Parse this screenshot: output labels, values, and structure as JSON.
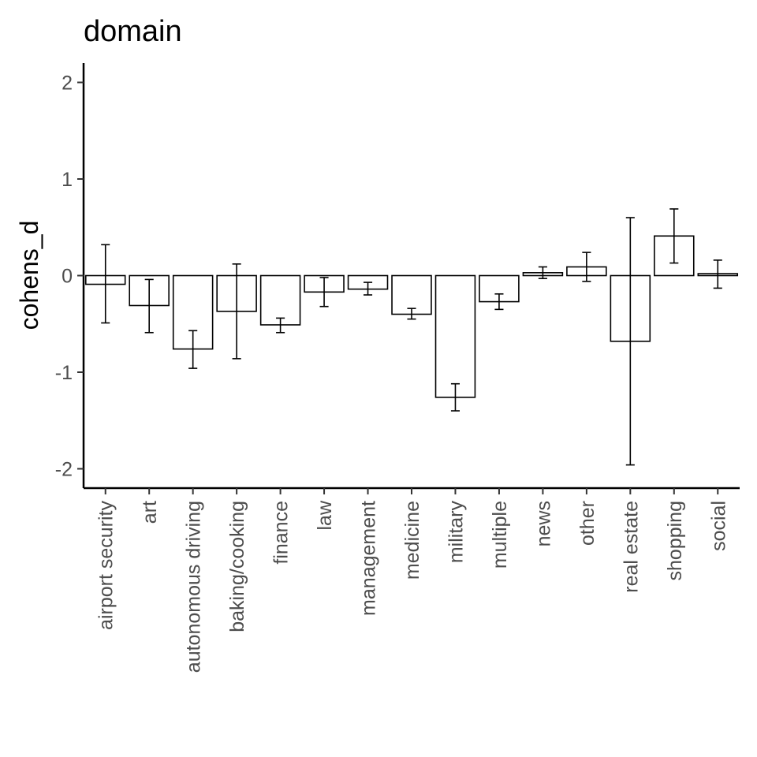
{
  "chart_data": {
    "type": "bar",
    "title": "domain",
    "xlabel": "",
    "ylabel": "cohens_d",
    "ylim": [
      -2.2,
      2.2
    ],
    "yticks": [
      -2,
      -1,
      0,
      1,
      2
    ],
    "grid": false,
    "categories": [
      "airport security",
      "art",
      "autonomous driving",
      "baking/cooking",
      "finance",
      "law",
      "management",
      "medicine",
      "military",
      "multiple",
      "news",
      "other",
      "real estate",
      "shopping",
      "social"
    ],
    "values": [
      -0.09,
      -0.31,
      -0.76,
      -0.37,
      -0.51,
      -0.17,
      -0.14,
      -0.4,
      -1.26,
      -0.27,
      0.03,
      0.09,
      -0.68,
      0.41,
      0.02
    ],
    "error_low": [
      -0.49,
      -0.59,
      -0.96,
      -0.86,
      -0.59,
      -0.32,
      -0.2,
      -0.45,
      -1.4,
      -0.35,
      -0.03,
      -0.06,
      -1.96,
      0.13,
      -0.13
    ],
    "error_high": [
      0.32,
      -0.04,
      -0.57,
      0.12,
      -0.44,
      -0.02,
      -0.07,
      -0.34,
      -1.12,
      -0.19,
      0.09,
      0.24,
      0.6,
      0.69,
      0.16
    ]
  }
}
